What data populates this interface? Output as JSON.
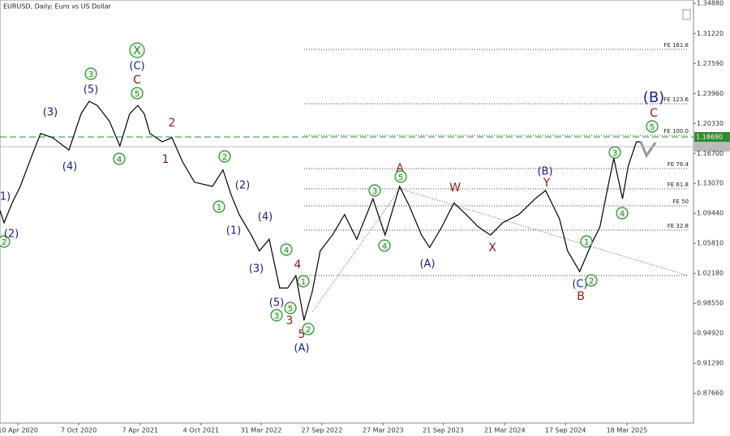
{
  "chart_data": {
    "type": "line",
    "title": "EURUSD, Daily:  Euro vs US Dollar",
    "xlim": [
      "17 Feb 2020",
      "1 Oct 2025"
    ],
    "ylim": [
      0.8405,
      1.3527
    ],
    "xticks": [
      "10 Apr 2020",
      "7 Oct 2020",
      "7 Apr 2021",
      "4 Oct 2021",
      "31 Mar 2022",
      "27 Sep 2022",
      "27 Mar 2023",
      "21 Sep 2023",
      "21 Mar 2024",
      "17 Sep 2024",
      "18 Mar 2025"
    ],
    "yticks": [
      {
        "value": 1.3488,
        "label": "1.34880"
      },
      {
        "value": 1.3122,
        "label": "1.31220"
      },
      {
        "value": 1.2759,
        "label": "1.27590"
      },
      {
        "value": 1.2396,
        "label": "1.23960"
      },
      {
        "value": 1.2033,
        "label": "1.20330"
      },
      {
        "value": 1.167,
        "label": "1.16700"
      },
      {
        "value": 1.1307,
        "label": "1.13070"
      },
      {
        "value": 1.0944,
        "label": "1.09440"
      },
      {
        "value": 1.0581,
        "label": "1.05810"
      },
      {
        "value": 1.0218,
        "label": "1.02180"
      },
      {
        "value": 0.9855,
        "label": "0.98550"
      },
      {
        "value": 0.9492,
        "label": "0.94920"
      },
      {
        "value": 0.9129,
        "label": "0.91290"
      },
      {
        "value": 0.8766,
        "label": "0.87660"
      }
    ],
    "x": [
      "17 Feb 2020",
      "29 Feb 2020",
      "24 Mar 2020",
      "17 Apr 2020",
      "23 May 2020",
      "16 Jun 2020",
      "22 Jul 2020",
      "8 Sep 2020",
      "14 Oct 2020",
      "7 Nov 2020",
      "1 Dec 2020",
      "6 Jan 2021",
      "6 Feb 2021",
      "7 Mar 2021",
      "31 Mar 2021",
      "19 Apr 2021",
      "6 May 2021",
      "11 Jun 2021",
      "10 Jul 2021",
      "10 Aug 2021",
      "15 Sep 2021",
      "7 Nov 2021",
      "8 Dec 2021",
      "1 Jan 2022",
      "25 Jan 2022",
      "2 Mar 2022",
      "26 Mar 2022",
      "24 Apr 2022",
      "25 May 2022",
      "18 Jun 2022",
      "12 Jul 2022",
      "5 Aug 2022",
      "29 Aug 2022",
      "22 Sep 2022",
      "28 Oct 2022",
      "3 Dec 2022",
      "8 Jan 2023",
      "25 Feb 2023",
      "2 Apr 2023",
      "15 May 2023",
      "13 Jun 2023",
      "19 Jul 2023",
      "12 Aug 2023",
      "17 Sep 2023",
      "23 Oct 2023",
      "28 Nov 2023",
      "3 Jan 2024",
      "8 Feb 2024",
      "15 Mar 2024",
      "2 May 2024",
      "19 Jun 2024",
      "20 Jul 2024",
      "30 Aug 2024",
      "23 Sep 2024",
      "29 Oct 2024",
      "4 Dec 2024",
      "28 Dec 2024",
      "21 Jan 2025",
      "7 Feb 2025",
      "5 Mar 2025",
      "22 Mar 2025",
      "15 Apr 2025",
      "27 Apr 2025"
    ],
    "series": [
      {
        "color": "#000000",
        "values": [
          1.098,
          1.083,
          1.107,
          1.127,
          1.166,
          1.191,
          1.186,
          1.171,
          1.215,
          1.23,
          1.225,
          1.206,
          1.176,
          1.215,
          1.225,
          1.215,
          1.191,
          1.181,
          1.186,
          1.157,
          1.132,
          1.127,
          1.147,
          1.117,
          1.093,
          1.068,
          1.049,
          1.063,
          1.004,
          1.004,
          1.019,
          0.965,
          0.999,
          1.049,
          1.068,
          1.093,
          1.063,
          1.112,
          1.068,
          1.127,
          1.103,
          1.068,
          1.053,
          1.078,
          1.107,
          1.093,
          1.078,
          1.068,
          1.083,
          1.093,
          1.112,
          1.122,
          1.088,
          1.049,
          1.024,
          1.058,
          1.078,
          1.127,
          1.161,
          1.112,
          1.152,
          1.181,
          1.181
        ]
      }
    ],
    "current_price": {
      "value": 1.1869,
      "label": "1.18690",
      "color": "#2e8b2e"
    },
    "levels": [
      {
        "label": "FE 161.8",
        "value": 1.2929
      },
      {
        "label": "FE 123.6",
        "value": 1.2271
      },
      {
        "label": "FE 100.0",
        "value": 1.1888
      },
      {
        "label": "FE 76.4",
        "value": 1.1486
      },
      {
        "label": "FE 61.8",
        "value": 1.1241
      },
      {
        "label": "FE 50",
        "value": 1.1035
      },
      {
        "label": "FE 32.8",
        "value": 1.074
      },
      {
        "value": 1.0191
      }
    ],
    "annotations": [
      {
        "text": "2",
        "style": "circle"
      },
      {
        "text": "(1)",
        "style": "navy"
      },
      {
        "text": "(2)",
        "style": "navy"
      },
      {
        "text": "(3)",
        "style": "navy"
      },
      {
        "text": "(4)",
        "style": "navy"
      },
      {
        "text": "(5)",
        "style": "navy"
      },
      {
        "text": "3",
        "style": "circle"
      },
      {
        "text": "4",
        "style": "circle"
      },
      {
        "text": "5",
        "style": "circle"
      },
      {
        "text": "C",
        "style": "red"
      },
      {
        "text": "(C)",
        "style": "navy"
      },
      {
        "text": "X",
        "style": "bigcircle"
      },
      {
        "text": "2",
        "style": "red"
      },
      {
        "text": "1",
        "style": "red"
      },
      {
        "text": "2",
        "style": "circle"
      },
      {
        "text": "1",
        "style": "circle"
      },
      {
        "text": "(2)",
        "style": "navy"
      },
      {
        "text": "(1)",
        "style": "navy"
      },
      {
        "text": "(4)",
        "style": "navy"
      },
      {
        "text": "(3)",
        "style": "navy"
      },
      {
        "text": "4",
        "style": "circle"
      },
      {
        "text": "4",
        "style": "red"
      },
      {
        "text": "(5)",
        "style": "navy"
      },
      {
        "text": "3",
        "style": "circle"
      },
      {
        "text": "5",
        "style": "circle"
      },
      {
        "text": "1",
        "style": "circle"
      },
      {
        "text": "3",
        "style": "red"
      },
      {
        "text": "5",
        "style": "red"
      },
      {
        "text": "2",
        "style": "circle"
      },
      {
        "text": "(A)",
        "style": "navy"
      },
      {
        "text": "3",
        "style": "circle"
      },
      {
        "text": "4",
        "style": "circle"
      },
      {
        "text": "A",
        "style": "red"
      },
      {
        "text": "5",
        "style": "circle"
      },
      {
        "text": "(A)",
        "style": "navy"
      },
      {
        "text": "W",
        "style": "red"
      },
      {
        "text": "X",
        "style": "red"
      },
      {
        "text": "(B)",
        "style": "navy"
      },
      {
        "text": "Y",
        "style": "red"
      },
      {
        "text": "(C)",
        "style": "navy"
      },
      {
        "text": "2",
        "style": "circle"
      },
      {
        "text": "1",
        "style": "circle"
      },
      {
        "text": "3",
        "style": "circle"
      },
      {
        "text": "4",
        "style": "circle"
      },
      {
        "text": "B",
        "style": "red"
      },
      {
        "text": "(B)",
        "style": "bignavy"
      },
      {
        "text": "C",
        "style": "red"
      },
      {
        "text": "5",
        "style": "circle"
      }
    ]
  }
}
